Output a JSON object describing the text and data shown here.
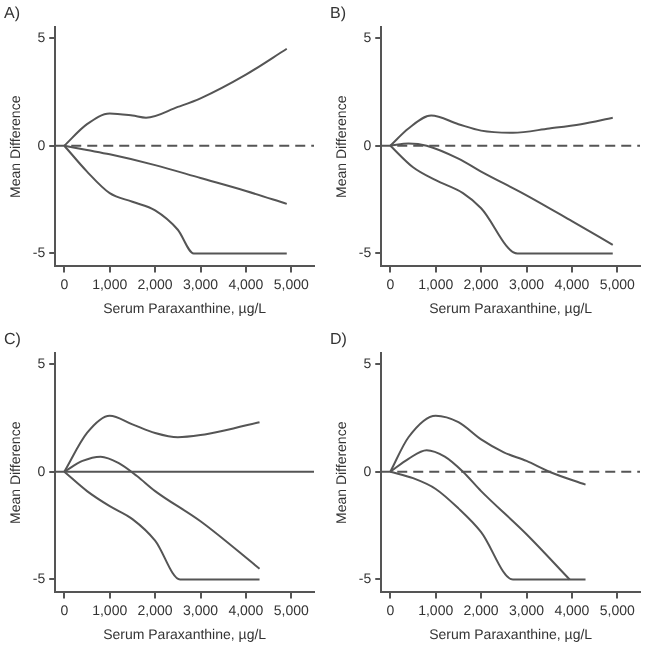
{
  "chart_data": [
    {
      "type": "line",
      "title": "A)",
      "xlabel": "Serum Paraxanthine, µg/L",
      "ylabel": "Mean Difference",
      "xlim": [
        -200,
        5500
      ],
      "ylim": [
        -5.6,
        5.5
      ],
      "xticks": [
        {
          "value": 0,
          "label": "0"
        },
        {
          "value": 1000,
          "label": "1,000"
        },
        {
          "value": 2000,
          "label": "2,000"
        },
        {
          "value": 3000,
          "label": "3,000"
        },
        {
          "value": 4000,
          "label": "4,000"
        },
        {
          "value": 5000,
          "label": "5,000"
        }
      ],
      "yticks": [
        -5,
        0,
        5
      ],
      "grid": false,
      "legend": false,
      "marker": "none",
      "ref_lines": [
        {
          "axis": "y",
          "value": 0,
          "line_style": "dashed",
          "color": "#555555"
        }
      ],
      "series": [
        {
          "color": "#555555",
          "x": [
            0,
            500,
            1000,
            1500,
            1800,
            2500,
            3000,
            4000,
            4900
          ],
          "values": [
            0,
            1.0,
            1.5,
            1.4,
            1.3,
            1.8,
            2.2,
            3.3,
            4.5
          ]
        },
        {
          "color": "#555555",
          "x": [
            0,
            500,
            1000,
            2000,
            3000,
            4000,
            4900
          ],
          "values": [
            0,
            -0.2,
            -0.4,
            -0.9,
            -1.5,
            -2.1,
            -2.7
          ]
        },
        {
          "color": "#555555",
          "x": [
            0,
            500,
            1000,
            1500,
            2000,
            2500,
            2850,
            4900
          ],
          "values": [
            0,
            -1.2,
            -2.2,
            -2.6,
            -3.0,
            -3.9,
            -5,
            -5
          ]
        }
      ]
    },
    {
      "type": "line",
      "title": "B)",
      "xlabel": "Serum Paraxanthine, µg/L",
      "ylabel": "Mean Difference",
      "xlim": [
        -200,
        5500
      ],
      "ylim": [
        -5.6,
        5.5
      ],
      "xticks": [
        {
          "value": 0,
          "label": "0"
        },
        {
          "value": 1000,
          "label": "1,000"
        },
        {
          "value": 2000,
          "label": "2,000"
        },
        {
          "value": 3000,
          "label": "3,000"
        },
        {
          "value": 4000,
          "label": "4,000"
        },
        {
          "value": 5000,
          "label": "5,000"
        }
      ],
      "yticks": [
        -5,
        0,
        5
      ],
      "grid": false,
      "legend": false,
      "marker": "none",
      "ref_lines": [
        {
          "axis": "y",
          "value": 0,
          "line_style": "dashed",
          "color": "#555555"
        }
      ],
      "series": [
        {
          "color": "#555555",
          "x": [
            0,
            400,
            900,
            1500,
            2000,
            2700,
            3500,
            4200,
            4900
          ],
          "values": [
            0,
            0.8,
            1.4,
            1.0,
            0.7,
            0.6,
            0.8,
            1.0,
            1.3
          ]
        },
        {
          "color": "#555555",
          "x": [
            0,
            400,
            800,
            1500,
            2000,
            3000,
            4000,
            4900
          ],
          "values": [
            0,
            0.1,
            0,
            -0.6,
            -1.2,
            -2.3,
            -3.5,
            -4.6
          ]
        },
        {
          "color": "#555555",
          "x": [
            0,
            500,
            1000,
            1600,
            2000,
            2800,
            4900
          ],
          "values": [
            0,
            -1.0,
            -1.6,
            -2.2,
            -2.9,
            -5,
            -5
          ]
        }
      ]
    },
    {
      "type": "line",
      "title": "C)",
      "xlabel": "Serum Paraxanthine, µg/L",
      "ylabel": "Mean Difference",
      "xlim": [
        -200,
        5500
      ],
      "ylim": [
        -5.6,
        5.5
      ],
      "xticks": [
        {
          "value": 0,
          "label": "0"
        },
        {
          "value": 1000,
          "label": "1,000"
        },
        {
          "value": 2000,
          "label": "2,000"
        },
        {
          "value": 3000,
          "label": "3,000"
        },
        {
          "value": 4000,
          "label": "4,000"
        },
        {
          "value": 5000,
          "label": "5,000"
        }
      ],
      "yticks": [
        -5,
        0,
        5
      ],
      "grid": false,
      "legend": false,
      "marker": "none",
      "ref_lines": [
        {
          "axis": "y",
          "value": 0,
          "line_style": "solid",
          "color": "#555555"
        }
      ],
      "series": [
        {
          "color": "#555555",
          "x": [
            0,
            500,
            1000,
            1500,
            2000,
            2500,
            3000,
            3500,
            4300
          ],
          "values": [
            0,
            1.8,
            2.6,
            2.2,
            1.8,
            1.6,
            1.7,
            1.9,
            2.3
          ]
        },
        {
          "color": "#555555",
          "x": [
            0,
            400,
            800,
            1200,
            1600,
            2000,
            3000,
            4300
          ],
          "values": [
            0,
            0.5,
            0.7,
            0.4,
            -0.2,
            -0.9,
            -2.3,
            -4.5
          ]
        },
        {
          "color": "#555555",
          "x": [
            0,
            500,
            1000,
            1500,
            2000,
            2550,
            4300
          ],
          "values": [
            0,
            -0.9,
            -1.6,
            -2.2,
            -3.2,
            -5,
            -5
          ]
        }
      ]
    },
    {
      "type": "line",
      "title": "D)",
      "xlabel": "Serum Paraxanthine, µg/L",
      "ylabel": "Mean Difference",
      "xlim": [
        -200,
        5500
      ],
      "ylim": [
        -5.6,
        5.5
      ],
      "xticks": [
        {
          "value": 0,
          "label": "0"
        },
        {
          "value": 1000,
          "label": "1,000"
        },
        {
          "value": 2000,
          "label": "2,000"
        },
        {
          "value": 3000,
          "label": "3,000"
        },
        {
          "value": 4000,
          "label": "4,000"
        },
        {
          "value": 5000,
          "label": "5,000"
        }
      ],
      "yticks": [
        -5,
        0,
        5
      ],
      "grid": false,
      "legend": false,
      "marker": "none",
      "ref_lines": [
        {
          "axis": "y",
          "value": 0,
          "line_style": "dashed",
          "color": "#555555"
        }
      ],
      "series": [
        {
          "color": "#555555",
          "x": [
            0,
            400,
            1000,
            1500,
            2000,
            2500,
            3000,
            3500,
            4300
          ],
          "values": [
            0,
            1.6,
            2.6,
            2.3,
            1.5,
            0.9,
            0.5,
            0.0,
            -0.6
          ]
        },
        {
          "color": "#555555",
          "x": [
            0,
            400,
            800,
            1200,
            1600,
            2000,
            3000,
            3950
          ],
          "values": [
            0,
            0.6,
            1.0,
            0.7,
            0.0,
            -0.9,
            -2.9,
            -5.0
          ]
        },
        {
          "color": "#555555",
          "x": [
            0,
            500,
            1000,
            1500,
            2000,
            2700,
            4300
          ],
          "values": [
            0,
            -0.3,
            -0.8,
            -1.7,
            -2.8,
            -5,
            -5
          ]
        }
      ]
    }
  ]
}
